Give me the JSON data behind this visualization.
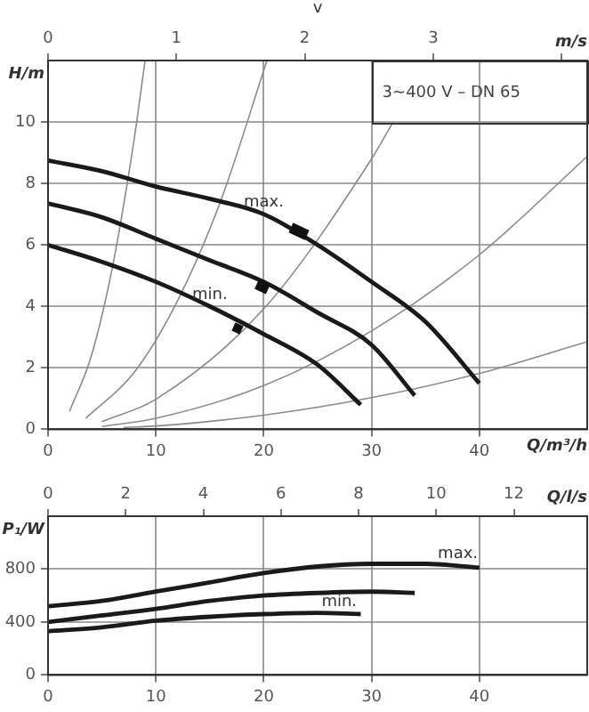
{
  "chart_data": [
    {
      "type": "line",
      "subtitle": "3~400 V – DN 65",
      "xlabel": "Q/m³/h",
      "ylabel": "H/m",
      "x2label": "m/s",
      "annotations": [
        "v",
        {
          "text": "max.",
          "x": 20,
          "y": 7.0
        },
        {
          "text": "min.",
          "x": 15,
          "y": 4.0
        }
      ],
      "xlim": [
        0,
        50
      ],
      "xticks": [
        0,
        10,
        20,
        30,
        40
      ],
      "ylim": [
        0,
        12
      ],
      "yticks": [
        0,
        2,
        4,
        6,
        8,
        10
      ],
      "x2lim": [
        0,
        4.2
      ],
      "x2ticks": [
        0,
        1,
        2,
        3,
        {
          "value": 4,
          "label": null
        }
      ],
      "grid": true,
      "legend": false,
      "marker": "none",
      "series": [
        {
          "color": "#1a1a1a",
          "x": [
            0,
            5,
            10,
            15,
            20,
            25,
            30,
            35,
            40
          ],
          "values": [
            8.75,
            8.4,
            7.9,
            7.5,
            7.0,
            6.0,
            4.8,
            3.5,
            1.5
          ]
        },
        {
          "color": "#1a1a1a",
          "x": [
            0,
            5,
            10,
            15,
            20,
            25,
            30,
            34
          ],
          "values": [
            7.35,
            6.9,
            6.2,
            5.5,
            4.8,
            3.8,
            2.75,
            1.1
          ]
        },
        {
          "color": "#1a1a1a",
          "x": [
            0,
            5,
            10,
            15,
            20,
            25,
            29
          ],
          "values": [
            6.0,
            5.45,
            4.8,
            4.0,
            3.1,
            2.1,
            0.8
          ]
        },
        {
          "color": "#8a8a8a",
          "x": [
            2,
            4,
            6,
            8,
            9
          ],
          "values": [
            0.59,
            2.37,
            5.33,
            9.47,
            12
          ]
        },
        {
          "color": "#8a8a8a",
          "x": [
            3.5,
            8,
            12,
            16,
            20.3
          ],
          "values": [
            0.36,
            1.86,
            4.18,
            7.42,
            12
          ]
        },
        {
          "color": "#8a8a8a",
          "x": [
            5,
            10,
            20,
            30,
            32
          ],
          "values": [
            0.25,
            0.98,
            3.92,
            8.8,
            10
          ]
        },
        {
          "color": "#8a8a8a",
          "x": [
            5,
            10,
            20,
            30,
            40,
            50
          ],
          "values": [
            0.09,
            0.36,
            1.42,
            3.2,
            5.68,
            8.88
          ]
        },
        {
          "color": "#8a8a8a",
          "x": [
            7,
            10,
            20,
            30,
            40,
            50
          ],
          "values": [
            0.06,
            0.11,
            0.46,
            1.03,
            1.82,
            2.85
          ]
        }
      ]
    },
    {
      "type": "line",
      "ylabel": "P₁/W",
      "x2label": "Q/l/s",
      "annotations": [
        {
          "text": "max.",
          "x": 38,
          "y": 825
        },
        {
          "text": "min.",
          "x": 27,
          "y": 465
        }
      ],
      "xlim": [
        0,
        50
      ],
      "xticks": [
        0,
        10,
        20,
        30,
        40
      ],
      "ylim": [
        0,
        1200
      ],
      "yticks": [
        0,
        400,
        800
      ],
      "x2lim": [
        0,
        13.89
      ],
      "x2ticks": [
        0,
        2,
        4,
        6,
        8,
        10,
        12
      ],
      "grid": true,
      "legend": false,
      "marker": "none",
      "series": [
        {
          "color": "#1a1a1a",
          "x": [
            0,
            5,
            10,
            15,
            20,
            25,
            30,
            35,
            40
          ],
          "values": [
            520,
            560,
            630,
            700,
            770,
            820,
            840,
            840,
            810
          ]
        },
        {
          "color": "#1a1a1a",
          "x": [
            0,
            5,
            10,
            15,
            20,
            25,
            30,
            34
          ],
          "values": [
            400,
            450,
            500,
            560,
            600,
            620,
            630,
            620
          ]
        },
        {
          "color": "#1a1a1a",
          "x": [
            0,
            5,
            10,
            15,
            20,
            25,
            29
          ],
          "values": [
            330,
            360,
            410,
            440,
            460,
            470,
            460
          ]
        }
      ]
    }
  ]
}
